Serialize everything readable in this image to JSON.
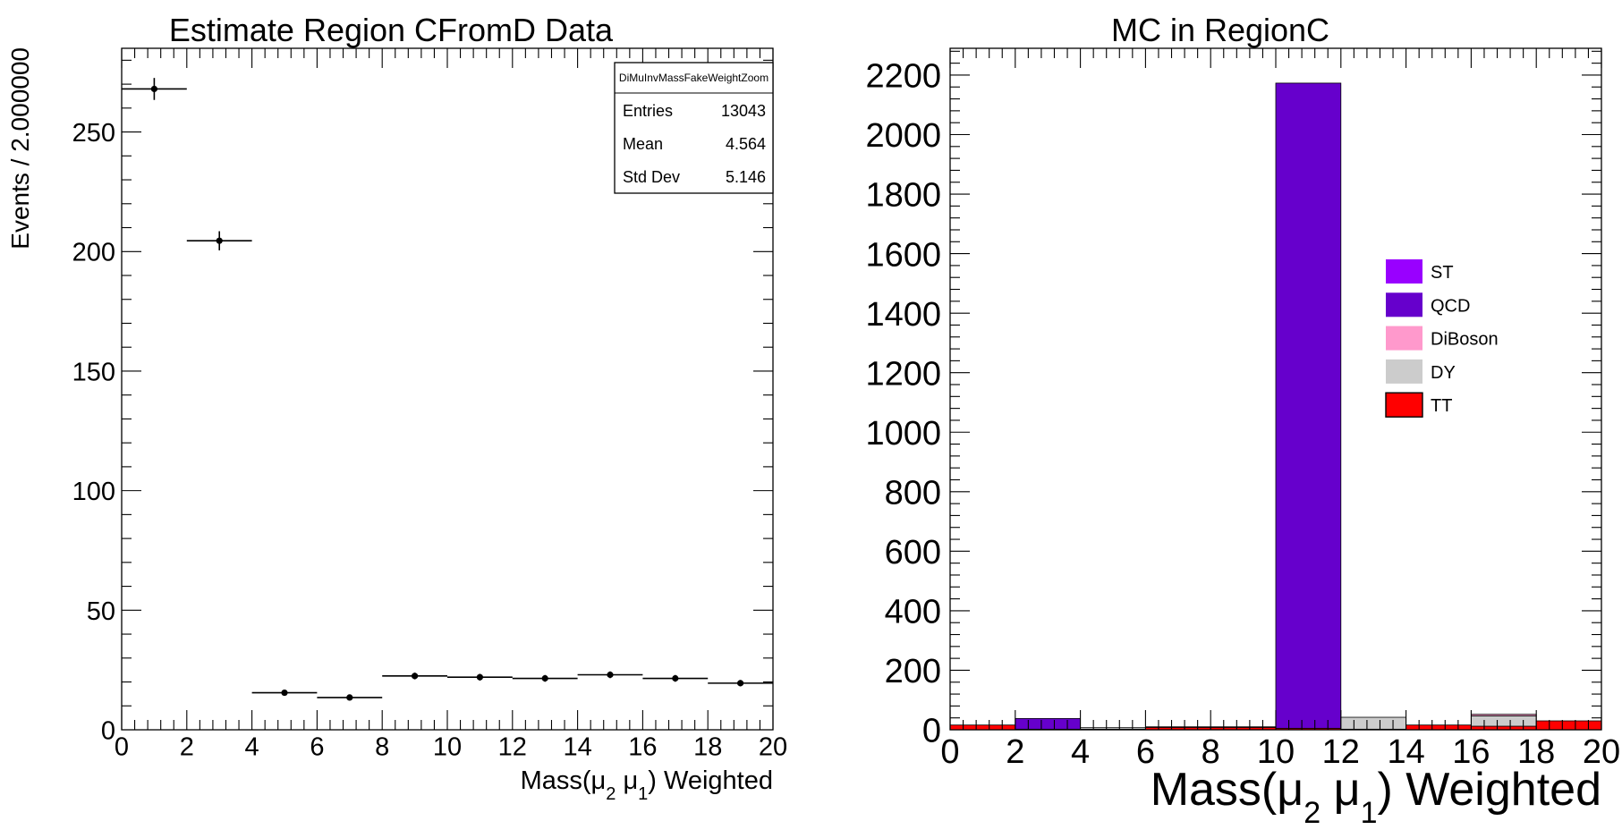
{
  "chart_data": [
    {
      "type": "scatter",
      "title": "Estimate Region CFromD Data",
      "xlabel": "Mass(μ₂ μ₁) Weighted",
      "xlabel_parts": {
        "pre": "Mass(",
        "mu": "μ",
        "sub1": "2",
        "sub2": "1",
        "post": ") Weighted"
      },
      "ylabel": "Events / 2.000000",
      "xlim": [
        0,
        20
      ],
      "ylim": [
        0,
        285
      ],
      "x_ticks": [
        0,
        2,
        4,
        6,
        8,
        10,
        12,
        14,
        16,
        18,
        20
      ],
      "y_ticks": [
        0,
        50,
        100,
        150,
        200,
        250
      ],
      "bin_width": 2,
      "points": [
        {
          "x": 1,
          "y": 268,
          "err": 4.6
        },
        {
          "x": 3,
          "y": 204.5,
          "err": 4.0
        },
        {
          "x": 5,
          "y": 15.5,
          "err": 1.2
        },
        {
          "x": 7,
          "y": 13.5,
          "err": 1.1
        },
        {
          "x": 9,
          "y": 22.5,
          "err": 1.4
        },
        {
          "x": 11,
          "y": 22,
          "err": 1.4
        },
        {
          "x": 13,
          "y": 21.5,
          "err": 1.4
        },
        {
          "x": 15,
          "y": 23,
          "err": 1.4
        },
        {
          "x": 17,
          "y": 21.5,
          "err": 1.4
        },
        {
          "x": 19,
          "y": 19.5,
          "err": 1.3
        }
      ],
      "stats_box": {
        "title": "DiMuInvMassFakeWeightZoom",
        "rows": [
          {
            "label": "Entries",
            "value": "13043"
          },
          {
            "label": "Mean",
            "value": "4.564"
          },
          {
            "label": "Std Dev",
            "value": "5.146"
          }
        ]
      }
    },
    {
      "type": "bar",
      "stacked": true,
      "title": "MC in RegionC",
      "xlabel": "Mass(μ₂ μ₁) Weighted",
      "xlabel_parts": {
        "pre": "Mass(",
        "mu": "μ",
        "sub1": "2",
        "sub2": "1",
        "post": ") Weighted"
      },
      "xlim": [
        0,
        20
      ],
      "ylim": [
        0,
        2290
      ],
      "x_ticks": [
        0,
        2,
        4,
        6,
        8,
        10,
        12,
        14,
        16,
        18,
        20
      ],
      "y_ticks": [
        0,
        200,
        400,
        600,
        800,
        1000,
        1200,
        1400,
        1600,
        1800,
        2000,
        2200
      ],
      "bin_edges": [
        0,
        2,
        4,
        6,
        8,
        10,
        12,
        14,
        16,
        18,
        20
      ],
      "stack_order": [
        "TT",
        "DY",
        "DiBoson",
        "QCD",
        "ST"
      ],
      "series": [
        {
          "name": "TT",
          "color": "#ff0000",
          "values": [
            16,
            2,
            2,
            8,
            8,
            5,
            2,
            16,
            12,
            30
          ]
        },
        {
          "name": "DY",
          "color": "#cccccc",
          "values": [
            0,
            0,
            5,
            2,
            2,
            0,
            40,
            0,
            35,
            0
          ]
        },
        {
          "name": "DiBoson",
          "color": "#ff99cc",
          "values": [
            0,
            0,
            0,
            0,
            0,
            0,
            0,
            0,
            5,
            0
          ]
        },
        {
          "name": "QCD",
          "color": "#6600cc",
          "values": [
            0,
            36,
            0,
            0,
            0,
            2168,
            0,
            0,
            0,
            0
          ]
        },
        {
          "name": "ST",
          "color": "#9900ff",
          "values": [
            0,
            0,
            0,
            0,
            0,
            0,
            0,
            0,
            0,
            0
          ]
        }
      ],
      "legend": {
        "placement": "center-right",
        "entries": [
          {
            "name": "ST",
            "color": "#9900ff"
          },
          {
            "name": "QCD",
            "color": "#6600cc"
          },
          {
            "name": "DiBoson",
            "color": "#ff99cc"
          },
          {
            "name": "DY",
            "color": "#cccccc"
          },
          {
            "name": "TT",
            "color": "#ff0000"
          }
        ]
      }
    }
  ]
}
